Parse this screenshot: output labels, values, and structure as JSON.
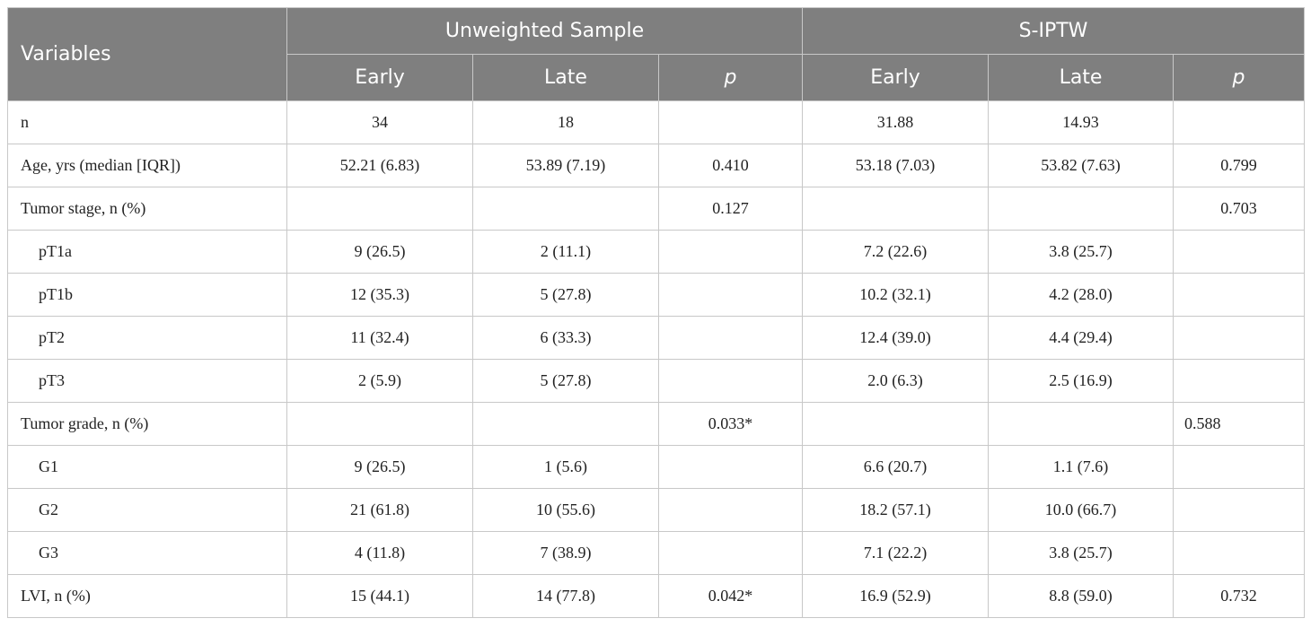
{
  "header": {
    "variables": "Variables",
    "group1": "Unweighted Sample",
    "group2": "S-IPTW",
    "early": "Early",
    "late": "Late",
    "p": "p"
  },
  "rows": [
    {
      "label": "n",
      "u_early": "34",
      "u_late": "18",
      "u_p": "",
      "s_early": "31.88",
      "s_late": "14.93",
      "s_p": ""
    },
    {
      "label": "Age, yrs (median [IQR])",
      "u_early": "52.21 (6.83)",
      "u_late": "53.89 (7.19)",
      "u_p": "0.410",
      "s_early": "53.18 (7.03)",
      "s_late": "53.82 (7.63)",
      "s_p": "0.799"
    },
    {
      "label": "Tumor stage, n (%)",
      "u_early": "",
      "u_late": "",
      "u_p": "0.127",
      "s_early": "",
      "s_late": "",
      "s_p": "0.703"
    },
    {
      "label": "pT1a",
      "u_early": "9 (26.5)",
      "u_late": "2 (11.1)",
      "u_p": "",
      "s_early": "7.2 (22.6)",
      "s_late": "3.8 (25.7)",
      "s_p": ""
    },
    {
      "label": "pT1b",
      "u_early": "12 (35.3)",
      "u_late": "5 (27.8)",
      "u_p": "",
      "s_early": "10.2 (32.1)",
      "s_late": "4.2 (28.0)",
      "s_p": ""
    },
    {
      "label": "pT2",
      "u_early": "11 (32.4)",
      "u_late": "6 (33.3)",
      "u_p": "",
      "s_early": "12.4 (39.0)",
      "s_late": "4.4 (29.4)",
      "s_p": ""
    },
    {
      "label": "pT3",
      "u_early": "2 (5.9)",
      "u_late": "5 (27.8)",
      "u_p": "",
      "s_early": "2.0 (6.3)",
      "s_late": "2.5 (16.9)",
      "s_p": ""
    },
    {
      "label": "Tumor grade, n (%)",
      "u_early": "",
      "u_late": "",
      "u_p": "0.033*",
      "s_early": "",
      "s_late": "",
      "s_p": "0.588"
    },
    {
      "label": "G1",
      "u_early": "9 (26.5)",
      "u_late": "1 (5.6)",
      "u_p": "",
      "s_early": "6.6 (20.7)",
      "s_late": "1.1 (7.6)",
      "s_p": ""
    },
    {
      "label": "G2",
      "u_early": "21 (61.8)",
      "u_late": "10 (55.6)",
      "u_p": "",
      "s_early": "18.2 (57.1)",
      "s_late": "10.0 (66.7)",
      "s_p": ""
    },
    {
      "label": "G3",
      "u_early": "4 (11.8)",
      "u_late": "7 (38.9)",
      "u_p": "",
      "s_early": "7.1 (22.2)",
      "s_late": "3.8 (25.7)",
      "s_p": ""
    },
    {
      "label": "LVI, n (%)",
      "u_early": "15 (44.1)",
      "u_late": "14 (77.8)",
      "u_p": "0.042*",
      "s_early": "16.9 (52.9)",
      "s_late": "8.8 (59.0)",
      "s_p": "0.732"
    }
  ]
}
